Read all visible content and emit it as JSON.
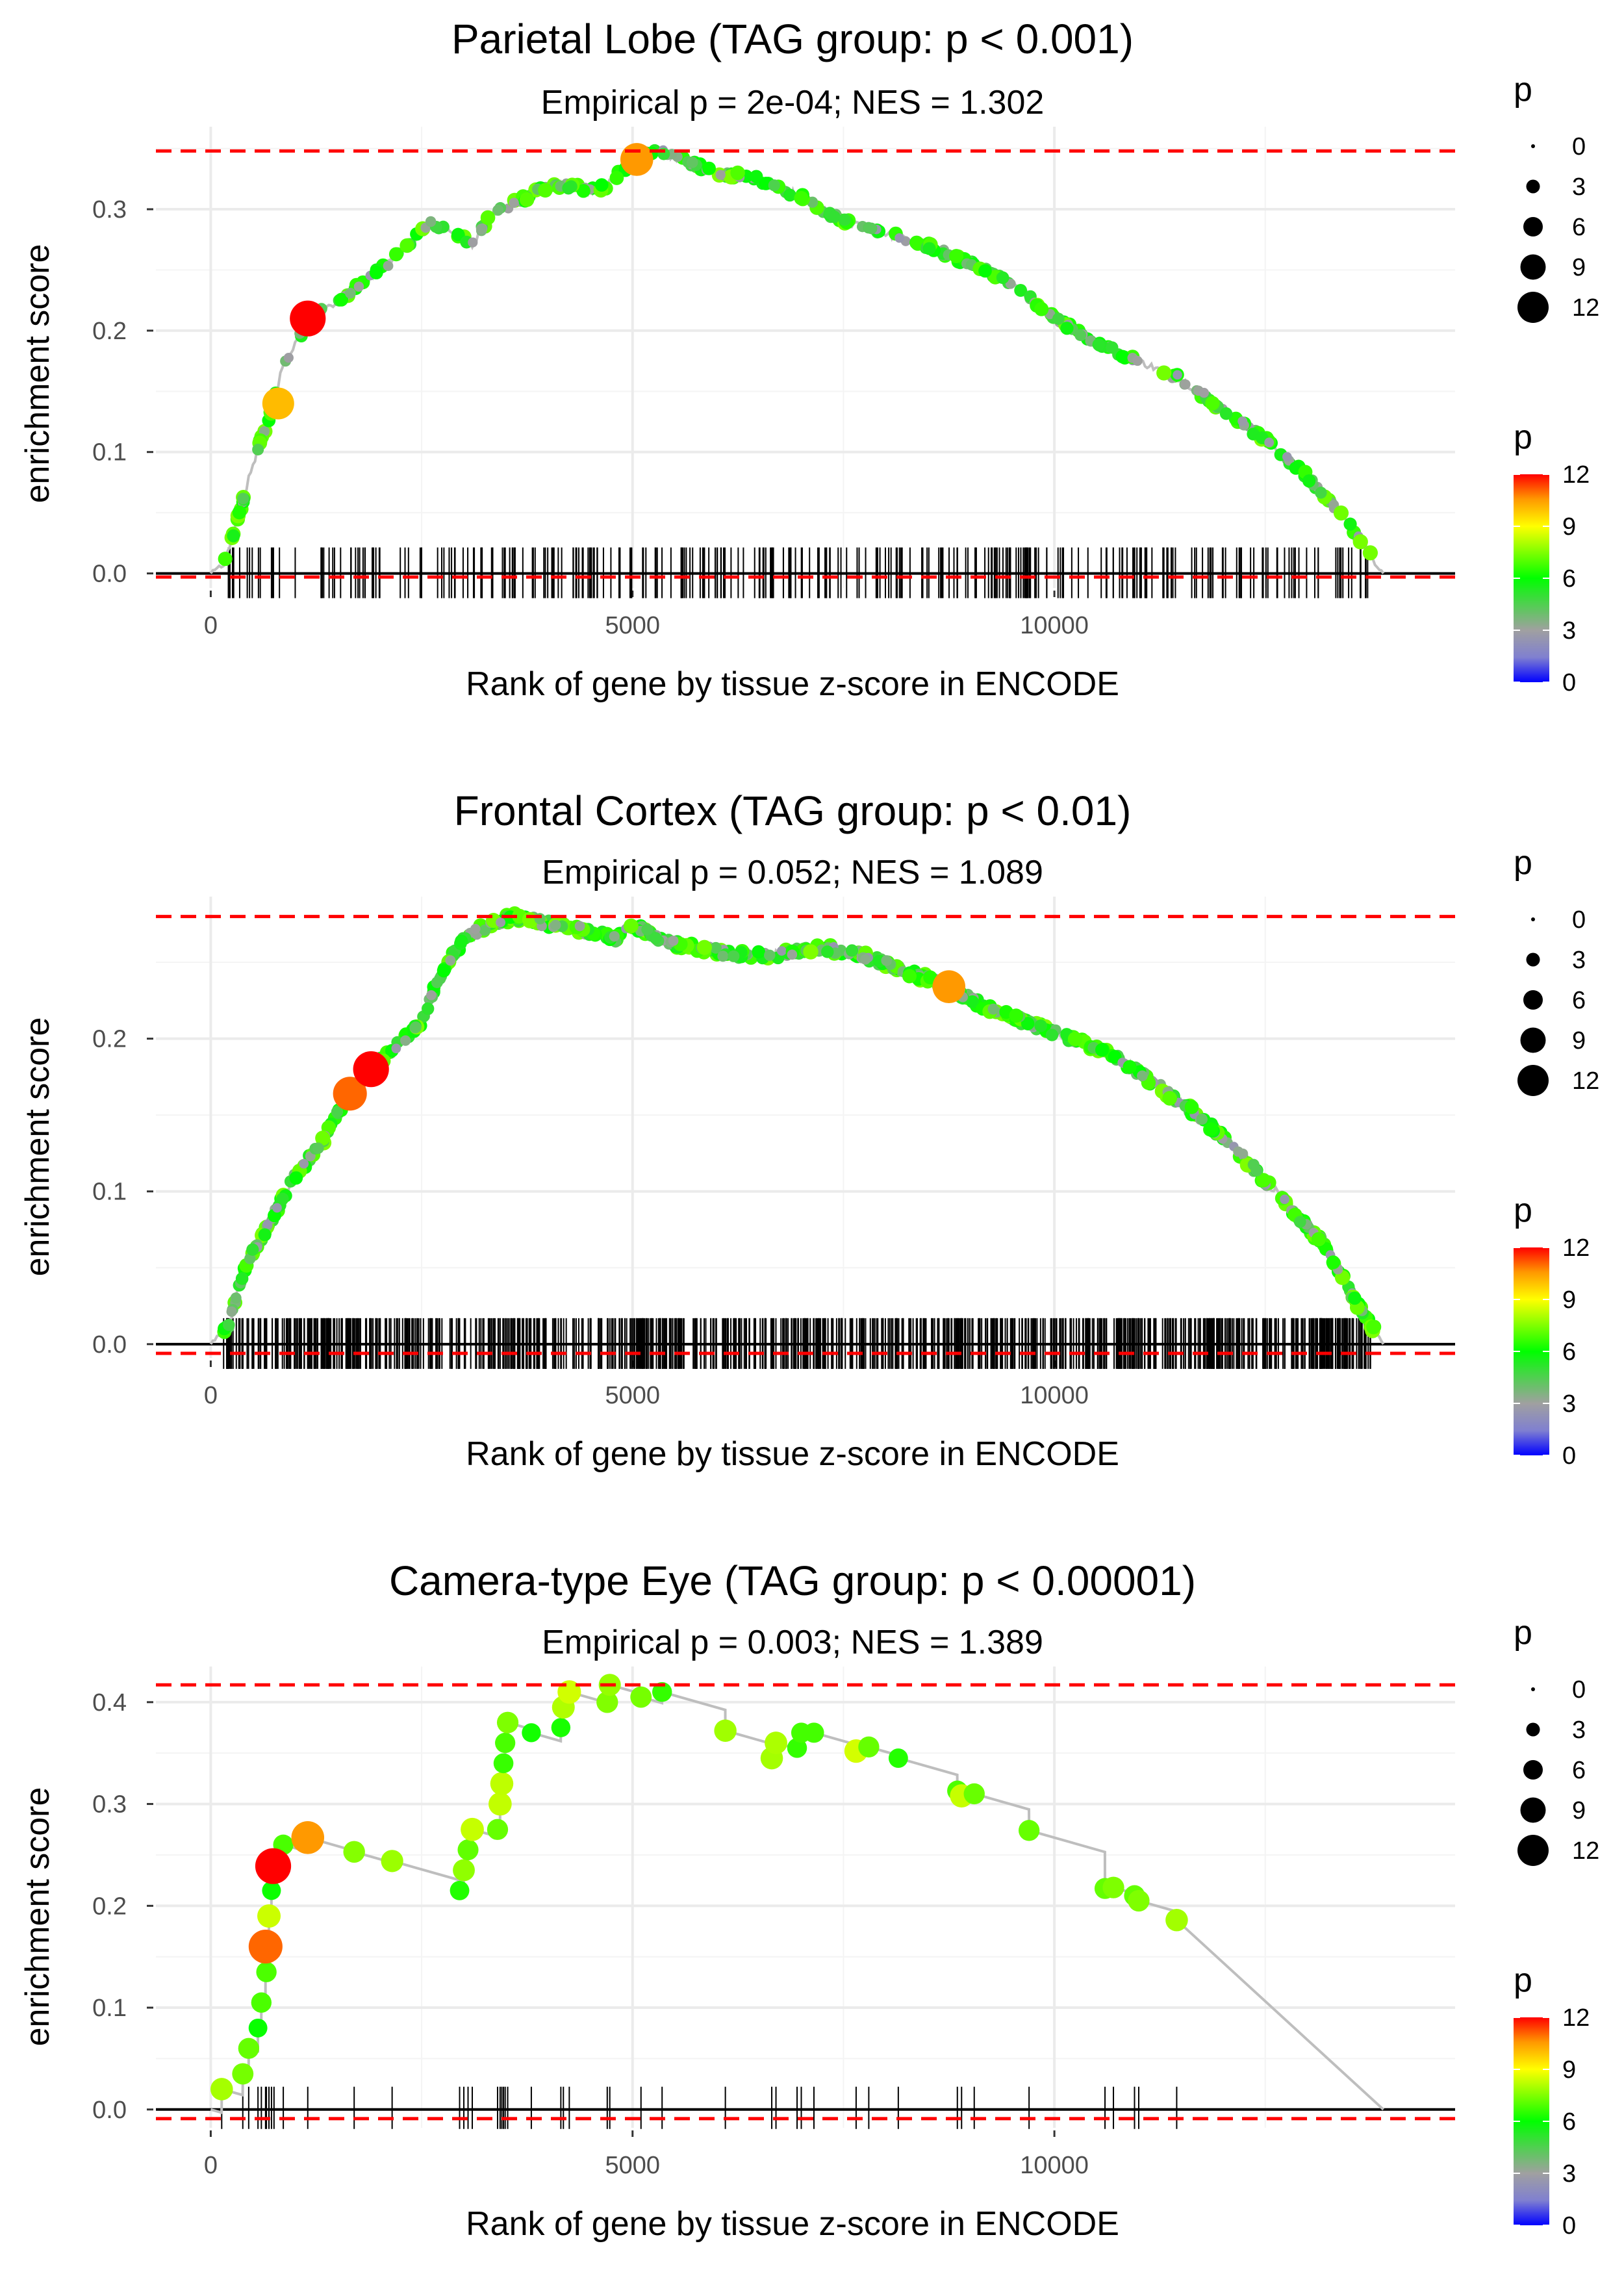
{
  "chart_data": [
    {
      "type": "line",
      "title": "Parietal Lobe (TAG group: p < 0.001)",
      "subtitle": "Empirical p = 2e-04; NES = 1.302",
      "xlabel": "Rank of gene by tissue z-score in ENCODE",
      "ylabel": "enrichment score",
      "xlim": [
        -650,
        14750
      ],
      "ylim": [
        -0.012,
        0.368
      ],
      "xticks": [
        0,
        5000,
        10000
      ],
      "xtick_labels": [
        "0",
        "5000",
        "10000"
      ],
      "yticks": [
        0.0,
        0.1,
        0.2,
        0.3
      ],
      "ytick_labels": [
        "0.0",
        "0.1",
        "0.2",
        "0.3"
      ],
      "max_es": 0.348,
      "min_es": -0.003,
      "rank_end": 13900,
      "curve": [
        [
          0,
          0
        ],
        [
          150,
          0.005
        ],
        [
          300,
          0.04
        ],
        [
          500,
          0.09
        ],
        [
          700,
          0.13
        ],
        [
          850,
          0.17
        ],
        [
          1000,
          0.19
        ],
        [
          1200,
          0.21
        ],
        [
          1500,
          0.225
        ],
        [
          1800,
          0.24
        ],
        [
          2100,
          0.255
        ],
        [
          2400,
          0.275
        ],
        [
          2600,
          0.29
        ],
        [
          2900,
          0.28
        ],
        [
          3100,
          0.27
        ],
        [
          3300,
          0.295
        ],
        [
          3600,
          0.305
        ],
        [
          3900,
          0.315
        ],
        [
          4200,
          0.32
        ],
        [
          4500,
          0.315
        ],
        [
          4700,
          0.32
        ],
        [
          5000,
          0.34
        ],
        [
          5300,
          0.348
        ],
        [
          5600,
          0.34
        ],
        [
          6000,
          0.33
        ],
        [
          6500,
          0.325
        ],
        [
          7000,
          0.31
        ],
        [
          7500,
          0.29
        ],
        [
          8000,
          0.28
        ],
        [
          8500,
          0.27
        ],
        [
          9000,
          0.255
        ],
        [
          9500,
          0.24
        ],
        [
          10000,
          0.21
        ],
        [
          10500,
          0.19
        ],
        [
          11000,
          0.175
        ],
        [
          11500,
          0.16
        ],
        [
          12000,
          0.135
        ],
        [
          12500,
          0.11
        ],
        [
          13000,
          0.08
        ],
        [
          13500,
          0.04
        ],
        [
          13900,
          0
        ]
      ],
      "big_points": [
        {
          "x": 800,
          "y": 0.14,
          "p": 10
        },
        {
          "x": 1150,
          "y": 0.21,
          "p": 12
        },
        {
          "x": 5050,
          "y": 0.341,
          "p": 10.5
        }
      ],
      "hit_density": "moderate"
    },
    {
      "type": "line",
      "title": "Frontal Cortex (TAG group: p < 0.01)",
      "subtitle": "Empirical p = 0.052; NES = 1.089",
      "xlabel": "Rank of gene by tissue z-score in ENCODE",
      "ylabel": "enrichment score",
      "xlim": [
        -650,
        14750
      ],
      "ylim": [
        -0.009,
        0.293
      ],
      "xticks": [
        0,
        5000,
        10000
      ],
      "xtick_labels": [
        "0",
        "5000",
        "10000"
      ],
      "yticks": [
        0.0,
        0.1,
        0.2
      ],
      "ytick_labels": [
        "0.0",
        "0.1",
        "0.2"
      ],
      "max_es": 0.28,
      "min_es": -0.006,
      "rank_end": 13900,
      "curve": [
        [
          0,
          0
        ],
        [
          200,
          0.01
        ],
        [
          400,
          0.05
        ],
        [
          700,
          0.08
        ],
        [
          1000,
          0.11
        ],
        [
          1300,
          0.13
        ],
        [
          1600,
          0.16
        ],
        [
          1900,
          0.18
        ],
        [
          2200,
          0.195
        ],
        [
          2500,
          0.21
        ],
        [
          2700,
          0.24
        ],
        [
          3000,
          0.265
        ],
        [
          3300,
          0.275
        ],
        [
          3600,
          0.28
        ],
        [
          4000,
          0.275
        ],
        [
          4500,
          0.27
        ],
        [
          4800,
          0.265
        ],
        [
          5000,
          0.275
        ],
        [
          5300,
          0.265
        ],
        [
          5700,
          0.26
        ],
        [
          6200,
          0.255
        ],
        [
          6700,
          0.255
        ],
        [
          7200,
          0.26
        ],
        [
          7700,
          0.255
        ],
        [
          8200,
          0.245
        ],
        [
          8700,
          0.235
        ],
        [
          9200,
          0.22
        ],
        [
          9700,
          0.21
        ],
        [
          10200,
          0.2
        ],
        [
          10700,
          0.19
        ],
        [
          11200,
          0.17
        ],
        [
          11700,
          0.15
        ],
        [
          12200,
          0.125
        ],
        [
          12700,
          0.095
        ],
        [
          13200,
          0.065
        ],
        [
          13600,
          0.025
        ],
        [
          13900,
          0
        ]
      ],
      "big_points": [
        {
          "x": 1650,
          "y": 0.164,
          "p": 11
        },
        {
          "x": 1900,
          "y": 0.18,
          "p": 12
        },
        {
          "x": 8750,
          "y": 0.234,
          "p": 10.5
        }
      ],
      "hit_density": "dense"
    },
    {
      "type": "line",
      "title": "Camera-type Eye (TAG group: p < 0.00001)",
      "subtitle": "Empirical p = 0.003; NES = 1.389",
      "xlabel": "Rank of gene by tissue z-score in ENCODE",
      "ylabel": "enrichment score",
      "xlim": [
        -650,
        14750
      ],
      "ylim": [
        -0.018,
        0.435
      ],
      "xticks": [
        0,
        5000,
        10000
      ],
      "xtick_labels": [
        "0",
        "5000",
        "10000"
      ],
      "yticks": [
        0.0,
        0.1,
        0.2,
        0.3,
        0.4
      ],
      "ytick_labels": [
        "0.0",
        "0.1",
        "0.2",
        "0.3",
        "0.4"
      ],
      "max_es": 0.417,
      "min_es": -0.009,
      "rank_end": 13900,
      "hits": [
        [
          130,
          0.02
        ],
        [
          380,
          0.035
        ],
        [
          450,
          0.06
        ],
        [
          560,
          0.08
        ],
        [
          600,
          0.105
        ],
        [
          650,
          0.16
        ],
        [
          660,
          0.135
        ],
        [
          690,
          0.19
        ],
        [
          720,
          0.215
        ],
        [
          750,
          0.24
        ],
        [
          860,
          0.26
        ],
        [
          1150,
          0.267
        ],
        [
          1700,
          0.253
        ],
        [
          2150,
          0.244
        ],
        [
          2950,
          0.215
        ],
        [
          3000,
          0.235
        ],
        [
          3050,
          0.255
        ],
        [
          3100,
          0.275
        ],
        [
          3400,
          0.275
        ],
        [
          3430,
          0.3
        ],
        [
          3450,
          0.32
        ],
        [
          3470,
          0.34
        ],
        [
          3490,
          0.36
        ],
        [
          3520,
          0.38
        ],
        [
          3800,
          0.37
        ],
        [
          4150,
          0.375
        ],
        [
          4180,
          0.395
        ],
        [
          4250,
          0.41
        ],
        [
          4700,
          0.4
        ],
        [
          4730,
          0.417
        ],
        [
          5100,
          0.405
        ],
        [
          5350,
          0.41
        ],
        [
          6100,
          0.372
        ],
        [
          6650,
          0.345
        ],
        [
          6700,
          0.36
        ],
        [
          6950,
          0.355
        ],
        [
          7000,
          0.37
        ],
        [
          7150,
          0.37
        ],
        [
          7650,
          0.352
        ],
        [
          7800,
          0.356
        ],
        [
          8150,
          0.345
        ],
        [
          8850,
          0.313
        ],
        [
          8900,
          0.308
        ],
        [
          9050,
          0.31
        ],
        [
          9700,
          0.274
        ],
        [
          10600,
          0.217
        ],
        [
          10700,
          0.218
        ],
        [
          10950,
          0.21
        ],
        [
          11000,
          0.205
        ],
        [
          11450,
          0.186
        ]
      ],
      "big_points": [
        {
          "x": 650,
          "y": 0.16,
          "p": 11
        },
        {
          "x": 740,
          "y": 0.239,
          "p": 12
        },
        {
          "x": 1150,
          "y": 0.267,
          "p": 10.5
        }
      ],
      "hit_density": "sparse"
    }
  ],
  "legend": {
    "size_title": "p",
    "size_labels": [
      "0",
      "3",
      "6",
      "9",
      "12"
    ],
    "color_title": "p",
    "color_labels": [
      "12",
      "9",
      "6",
      "3",
      "0"
    ],
    "color_stops": [
      "#0000ff",
      "#a0a0a0",
      "#00ff00",
      "#ffff00",
      "#ff9900",
      "#ff0000"
    ]
  },
  "colors": {
    "max_line": "#ff0000",
    "curve": "#bebebe",
    "hit": "#000000",
    "grid": "#ebebeb"
  }
}
